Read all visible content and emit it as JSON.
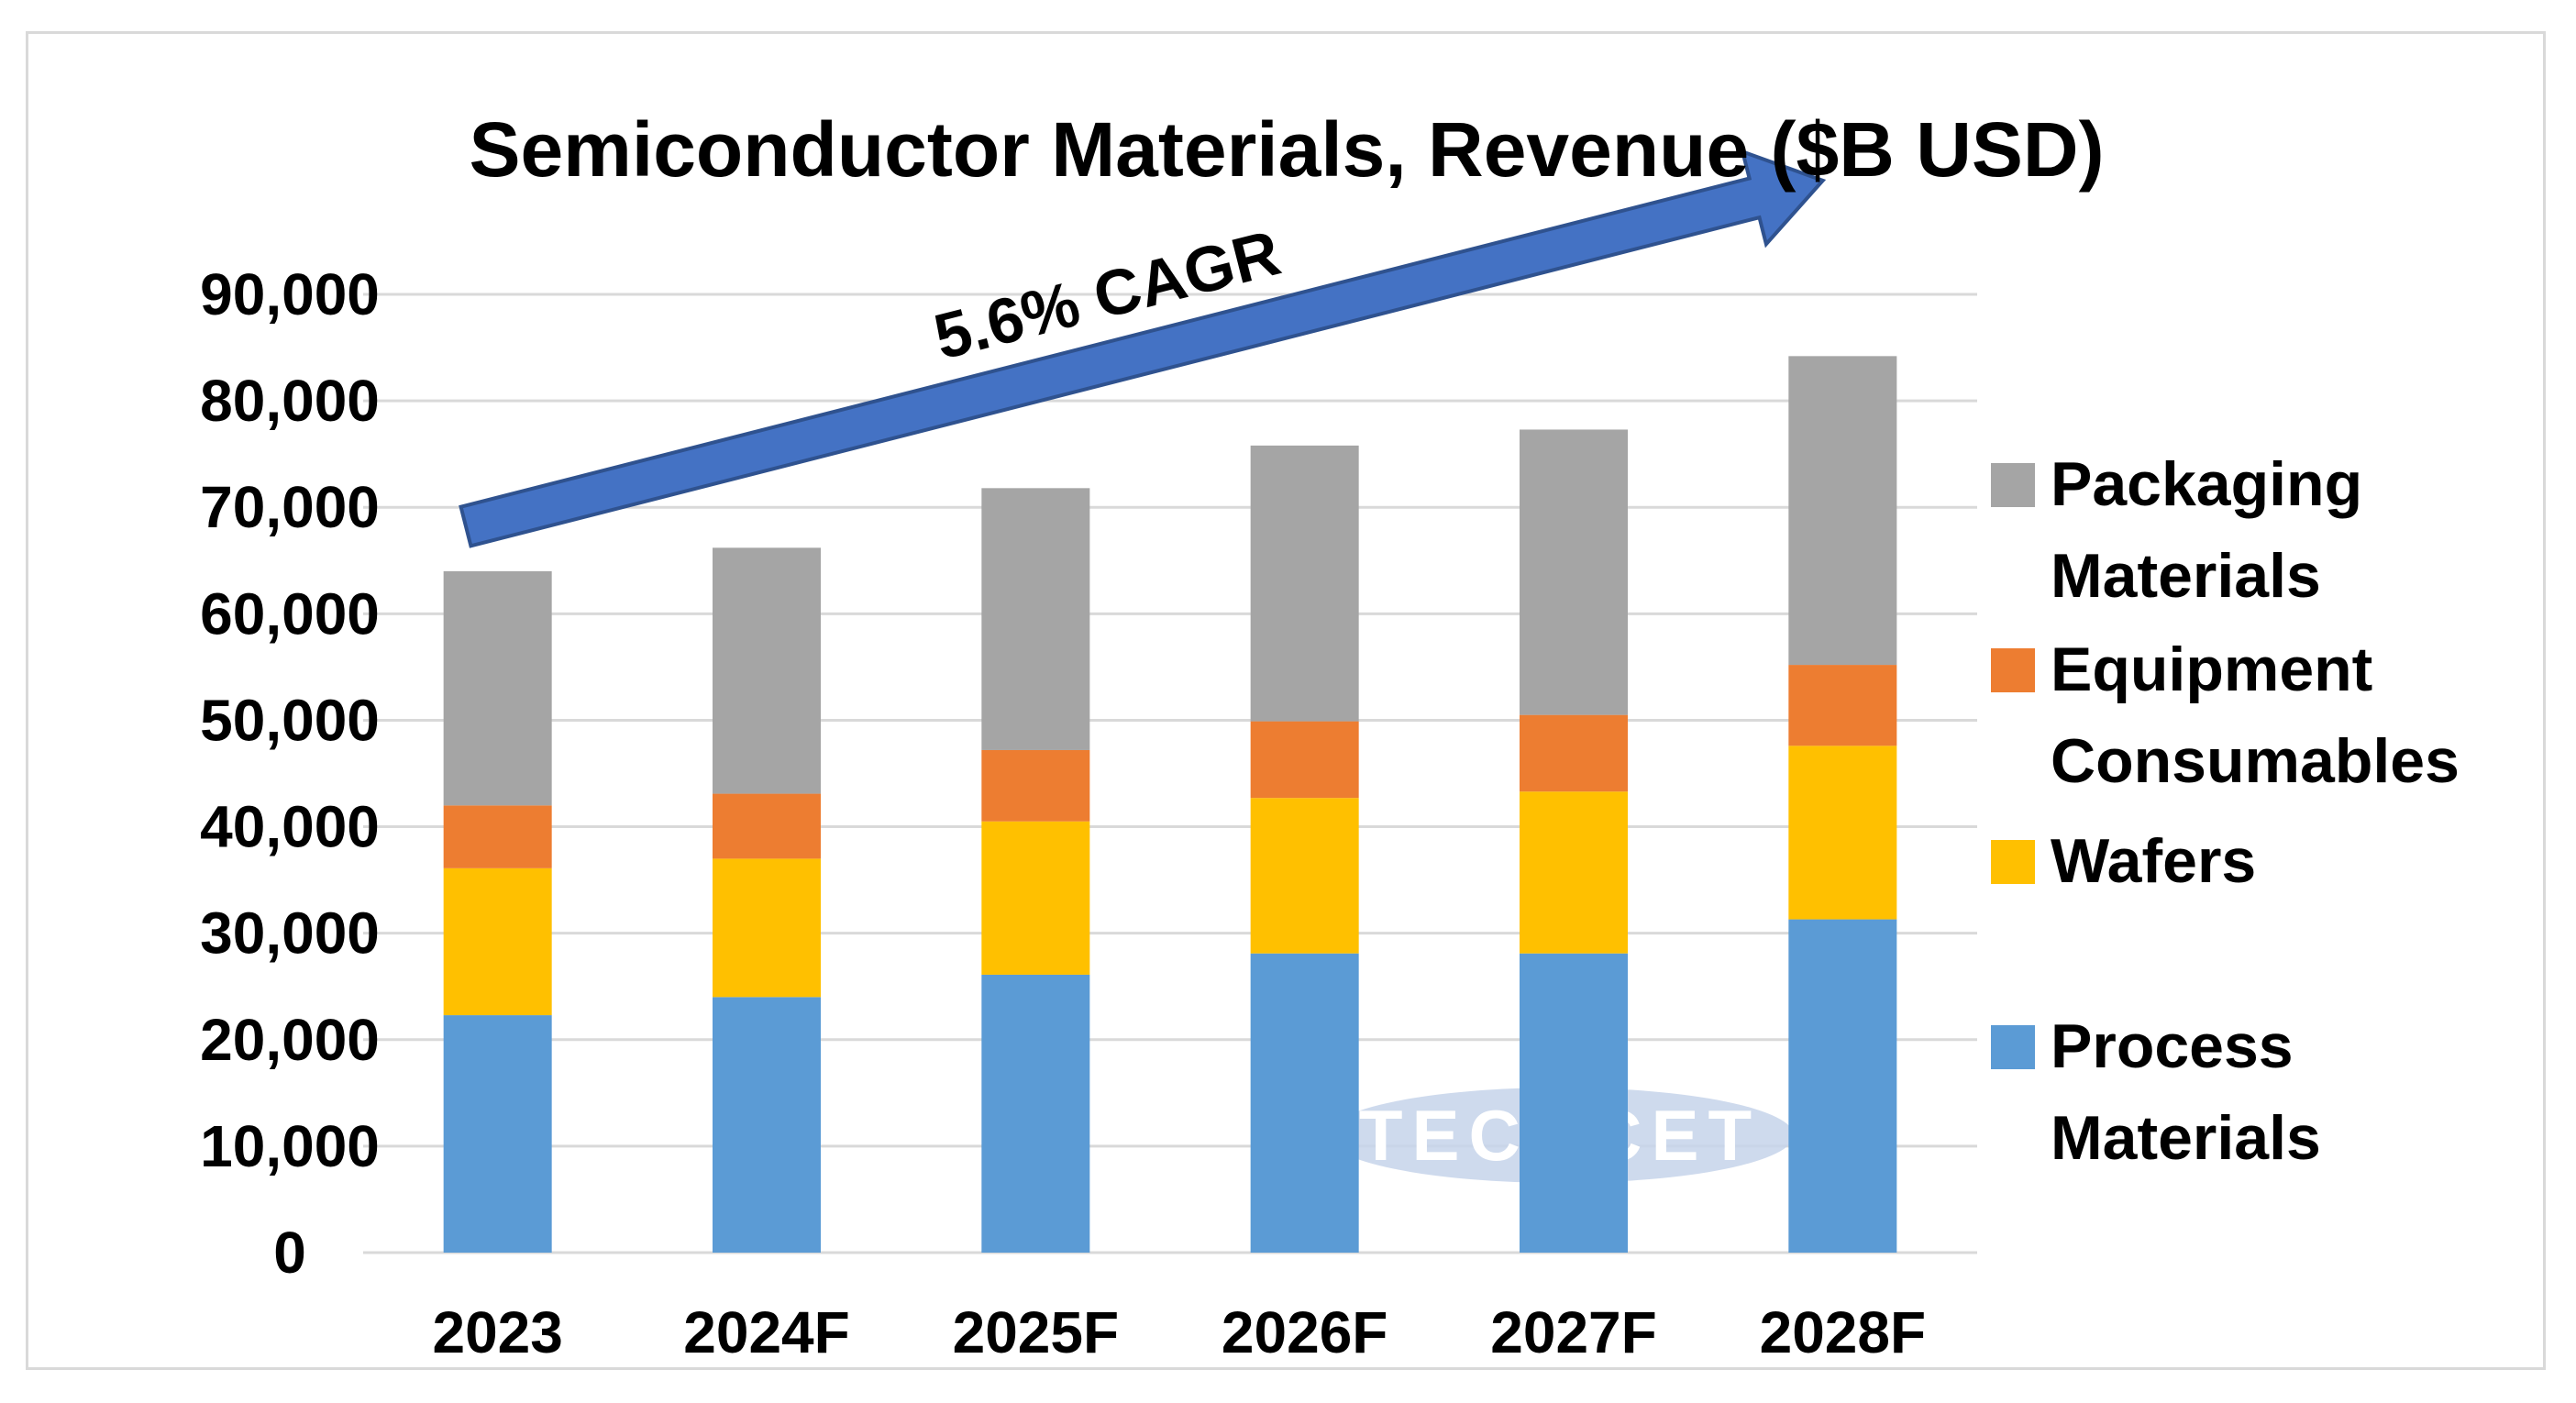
{
  "chart_data": {
    "type": "bar",
    "stacked": true,
    "title": "Semiconductor Materials, Revenue ($B USD)",
    "categories": [
      "2023",
      "2024F",
      "2025F",
      "2026F",
      "2027F",
      "2028F"
    ],
    "series": [
      {
        "name": "Process Materials",
        "color": "#5b9bd5",
        "values": [
          22300,
          24000,
          26100,
          28100,
          28100,
          31300
        ]
      },
      {
        "name": "Wafers",
        "color": "#ffc000",
        "values": [
          13800,
          13000,
          14400,
          14600,
          15200,
          16300
        ]
      },
      {
        "name": "Equipment Consumables",
        "color": "#ed7d31",
        "values": [
          5900,
          6100,
          6700,
          7200,
          7200,
          7600
        ]
      },
      {
        "name": "Packaging Materials",
        "color": "#a5a5a5",
        "values": [
          22000,
          23100,
          24600,
          25900,
          26800,
          29000
        ]
      }
    ],
    "legend_order": [
      "Packaging Materials",
      "Equipment Consumables",
      "Wafers",
      "Process Materials"
    ],
    "legend_labels": {
      "Packaging Materials": [
        "Packaging",
        "Materials"
      ],
      "Equipment Consumables": [
        "Equipment",
        "Consumables"
      ],
      "Wafers": [
        "Wafers"
      ],
      "Process Materials": [
        "Process",
        "Materials"
      ]
    },
    "yticks": [
      "0",
      "10,000",
      "20,000",
      "30,000",
      "40,000",
      "50,000",
      "60,000",
      "70,000",
      "80,000",
      "90,000"
    ],
    "ylim": [
      0,
      90000
    ],
    "grid": true,
    "legend_position": "right",
    "annotation": "5.6% CAGR",
    "watermark": "TECHCET",
    "colors": {
      "gridline": "#d9d9d9",
      "arrow": "#4472c4",
      "arrow_outline": "#2f528f",
      "watermark_fill": "#c5d3ea"
    }
  }
}
